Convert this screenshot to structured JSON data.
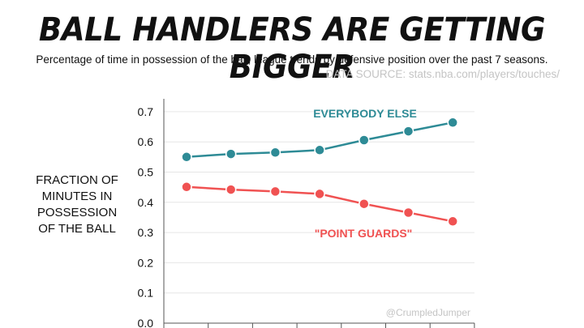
{
  "title": "BALL HANDLERS ARE GETTING BIGGER",
  "subtitle": "Percentage of time in possession of the ball;  league trends by defensive position over the past 7 seasons.",
  "source": "DATA SOURCE: stats.nba.com/players/touches/",
  "watermark": "@CrumpledJumper",
  "chart_data": {
    "type": "line",
    "ylabel_lines": [
      "FRACTION OF",
      "MINUTES IN",
      "POSSESSION",
      "OF THE BALL"
    ],
    "ylim": [
      0,
      0.7
    ],
    "yticks": [
      "0.0",
      "0.1",
      "0.2",
      "0.3",
      "0.4",
      "0.5",
      "0.6",
      "0.7"
    ],
    "grid": true,
    "series": [
      {
        "name": "EVERYBODY ELSE",
        "color": "#2e8b96",
        "values": [
          0.55,
          0.56,
          0.565,
          0.573,
          0.606,
          0.635,
          0.664
        ]
      },
      {
        "name": "\"POINT GUARDS\"",
        "color": "#f05252",
        "values": [
          0.451,
          0.442,
          0.436,
          0.428,
          0.395,
          0.366,
          0.337
        ]
      }
    ]
  }
}
